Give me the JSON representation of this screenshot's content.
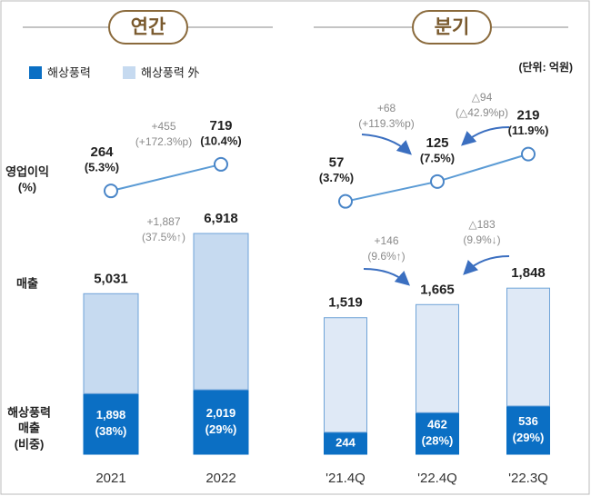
{
  "unit": "(단위: 억원)",
  "row_labels": {
    "profit": [
      "영업이익",
      "(%)"
    ],
    "sales": [
      "매출"
    ],
    "wind": [
      "해상풍력",
      "매출",
      "(비중)"
    ]
  },
  "chart_data": [
    {
      "type": "bar",
      "title": "연간",
      "categories": [
        "2021",
        "2022"
      ],
      "ylim": [
        0,
        8000
      ],
      "y2lim": [
        -200,
        1200
      ],
      "series": [
        {
          "name": "해상풍력",
          "color": "#0b6fc4",
          "values": [
            1898,
            2019
          ],
          "value_labels": [
            "1,898",
            "2,019"
          ],
          "share_labels": [
            "(38%)",
            "(29%)"
          ]
        },
        {
          "name": "해상풍력 外",
          "color": "#c6daf0",
          "values": [
            3133,
            4899
          ]
        },
        {
          "type": "line",
          "axis": "y2",
          "color": "#5b9bd5",
          "values": [
            264,
            719
          ],
          "value_labels": [
            "264",
            "719"
          ],
          "margin_labels": [
            "(5.3%)",
            "(10.4%)"
          ]
        }
      ],
      "total_labels": [
        "5,031",
        "6,918"
      ],
      "line_changes": [
        [
          "+455",
          "(+172.3%p)"
        ]
      ],
      "bar_changes": [
        [
          "+1,887",
          "(37.5%↑)"
        ]
      ]
    },
    {
      "type": "bar",
      "title": "분기",
      "categories": [
        "'21.4Q",
        "'22.4Q",
        "'22.3Q"
      ],
      "ylim": [
        0,
        2800
      ],
      "y2lim": [
        0,
        280
      ],
      "series": [
        {
          "color": "#0b6fc4",
          "values": [
            244,
            462,
            536
          ],
          "value_labels": [
            "244",
            "462",
            "536"
          ],
          "share_labels": [
            null,
            "(28%)",
            "(29%)"
          ]
        },
        {
          "color": "#dfe9f6",
          "values": [
            1275,
            1203,
            1312
          ]
        },
        {
          "type": "line",
          "axis": "y2",
          "color": "#5b9bd5",
          "values": [
            57,
            125,
            219
          ],
          "value_labels": [
            "57",
            "125",
            "219"
          ],
          "margin_labels": [
            "(3.7%)",
            "(7.5%)",
            "(11.9%)"
          ]
        }
      ],
      "total_labels": [
        "1,519",
        "1,665",
        "1,848"
      ],
      "line_changes": [
        [
          "+68",
          "(+119.3%p)"
        ],
        [
          "△94",
          "(△42.9%p)"
        ]
      ],
      "bar_changes": [
        [
          "+146",
          "(9.6%↑)"
        ],
        [
          "△183",
          "(9.9%↓)"
        ]
      ]
    }
  ]
}
